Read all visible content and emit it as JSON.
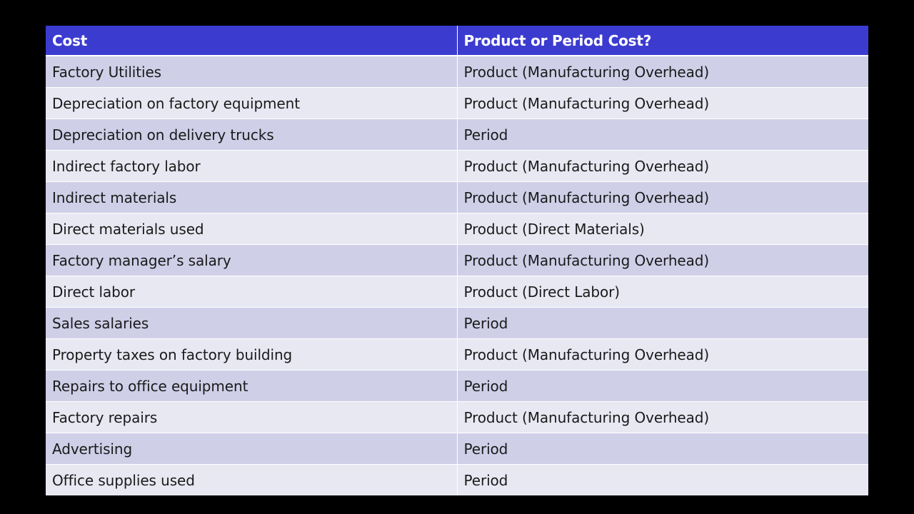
{
  "table": {
    "headers": [
      "Cost",
      "Product or Period Cost?"
    ],
    "rows": [
      [
        "Factory Utilities",
        "Product (Manufacturing Overhead)"
      ],
      [
        "Depreciation on factory equipment",
        "Product (Manufacturing Overhead)"
      ],
      [
        "Depreciation on delivery trucks",
        "Period"
      ],
      [
        "Indirect factory labor",
        "Product (Manufacturing Overhead)"
      ],
      [
        "Indirect materials",
        "Product (Manufacturing Overhead)"
      ],
      [
        "Direct materials used",
        "Product (Direct Materials)"
      ],
      [
        "Factory manager’s salary",
        "Product (Manufacturing Overhead)"
      ],
      [
        "Direct labor",
        "Product (Direct Labor)"
      ],
      [
        "Sales salaries",
        "Period"
      ],
      [
        "Property taxes on factory building",
        "Product (Manufacturing Overhead)"
      ],
      [
        "Repairs to office equipment",
        "Period"
      ],
      [
        "Factory repairs",
        "Product (Manufacturing Overhead)"
      ],
      [
        "Advertising",
        "Period"
      ],
      [
        "Office supplies used",
        "Period"
      ]
    ]
  },
  "colors": {
    "header_bg": "#3c3bd0",
    "row_odd_bg": "#cfcfe8",
    "row_even_bg": "#e8e8f3",
    "page_bg": "#000000"
  }
}
